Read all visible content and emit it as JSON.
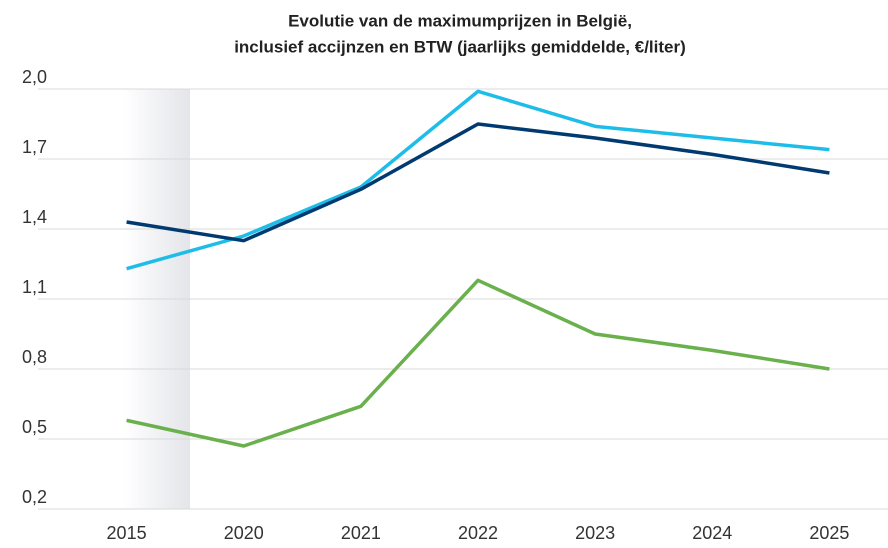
{
  "chart_data": {
    "type": "line",
    "title": [
      "Evolutie van de maximumprijzen in België,",
      "inclusief accijnzen en BTW (jaarlijks gemiddelde, €/liter)"
    ],
    "categories": [
      "2015",
      "2020",
      "2021",
      "2022",
      "2023",
      "2024",
      "2025"
    ],
    "series": [
      {
        "color": "#1ebde8",
        "values": [
          1.23,
          1.37,
          1.58,
          1.99,
          1.84,
          1.79,
          1.74
        ]
      },
      {
        "color": "#003a70",
        "values": [
          1.43,
          1.35,
          1.57,
          1.85,
          1.79,
          1.72,
          1.64
        ]
      },
      {
        "color": "#6ab04c",
        "values": [
          0.58,
          0.47,
          0.64,
          1.18,
          0.95,
          0.88,
          0.8
        ]
      }
    ],
    "ylim": [
      0.2,
      2.0
    ],
    "yticks": [
      {
        "value": 0.2,
        "label": "0,2"
      },
      {
        "value": 0.5,
        "label": "0,5"
      },
      {
        "value": 0.8,
        "label": "0,8"
      },
      {
        "value": 1.1,
        "label": "1,1"
      },
      {
        "value": 1.4,
        "label": "1,4"
      },
      {
        "value": 1.7,
        "label": "1,7"
      },
      {
        "value": 2.0,
        "label": "2,0"
      }
    ],
    "grid": true
  }
}
